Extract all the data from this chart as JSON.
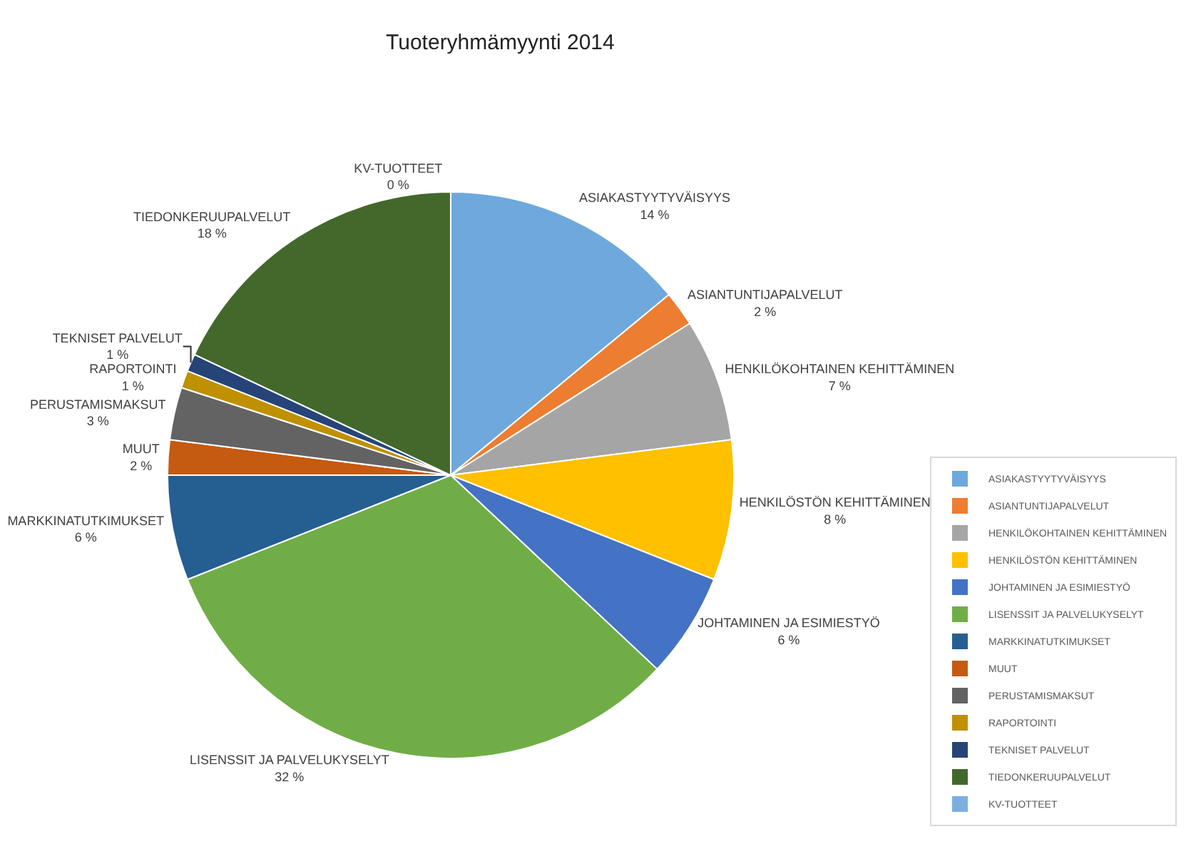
{
  "chart_data": {
    "type": "pie",
    "title": "Tuoteryhmämyynti 2014",
    "categories": [
      "ASIAKASTYYTYVÄISYYS",
      "ASIANTUNTIJAPALVELUT",
      "HENKILÖKOHTAINEN KEHITTÄMINEN",
      "HENKILÖSTÖN KEHITTÄMINEN",
      "JOHTAMINEN JA ESIMIESTYÖ",
      "LISENSSIT JA PALVELUKYSELYT",
      "MARKKINATUTKIMUKSET",
      "MUUT",
      "PERUSTAMISMAKSUT",
      "RAPORTOINTI",
      "TEKNISET PALVELUT",
      "TIEDONKERUUPALVELUT",
      "KV-TUOTTEET"
    ],
    "values": [
      14,
      2,
      7,
      8,
      6,
      32,
      6,
      2,
      3,
      1,
      1,
      18,
      0
    ],
    "value_labels": [
      "14 %",
      "2 %",
      "7 %",
      "8 %",
      "6 %",
      "32 %",
      "6 %",
      "2 %",
      "3 %",
      "1 %",
      "1 %",
      "18 %",
      "0 %"
    ],
    "colors": [
      "#6fa8dc",
      "#ed7d31",
      "#a5a5a5",
      "#ffc000",
      "#4472c4",
      "#70ad47",
      "#255e91",
      "#c55a11",
      "#636363",
      "#bf9000",
      "#264478",
      "#43682b",
      "#7cafdd"
    ],
    "legend": "right"
  }
}
